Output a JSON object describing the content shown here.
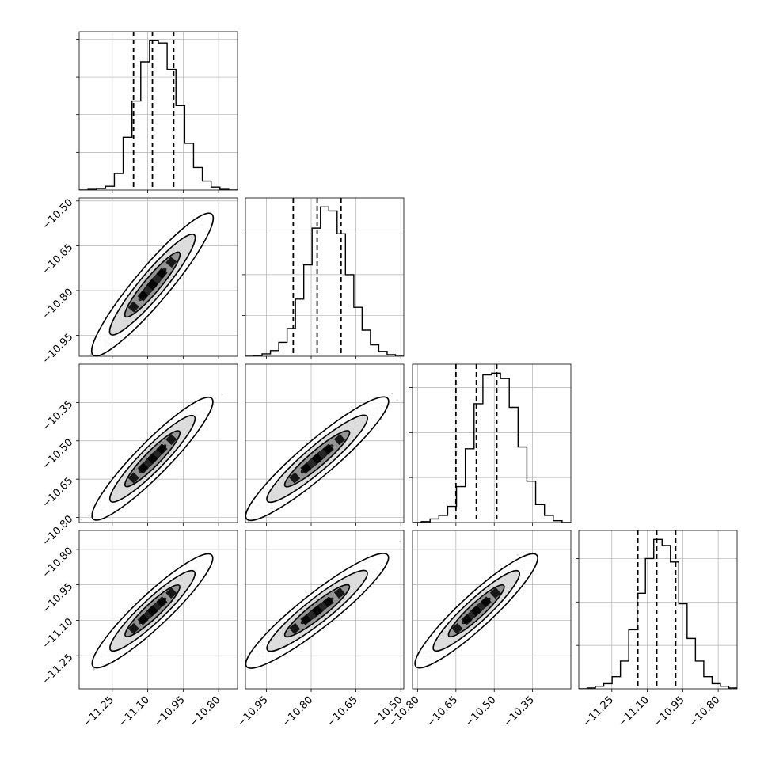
{
  "chart_data": {
    "type": "corner",
    "title": "",
    "parameters": [
      {
        "index": 0,
        "range": [
          -11.39,
          -10.72
        ],
        "ticks": [
          "−11.25",
          "−11.10",
          "−10.95",
          "−10.80"
        ],
        "tick_values": [
          -11.25,
          -11.1,
          -10.95,
          -10.8
        ],
        "quantiles": [
          -11.16,
          -11.08,
          -10.99
        ]
      },
      {
        "index": 1,
        "range": [
          -11.02,
          -10.49
        ],
        "ticks": [
          "−10.95",
          "−10.80",
          "−10.65",
          "−10.50"
        ],
        "tick_values": [
          -10.95,
          -10.8,
          -10.65,
          -10.5
        ],
        "quantiles": [
          -10.86,
          -10.78,
          -10.7
        ]
      },
      {
        "index": 2,
        "range": [
          -10.82,
          -10.2
        ],
        "ticks": [
          "−10.80",
          "−10.65",
          "−10.50",
          "−10.35"
        ],
        "tick_values": [
          -10.8,
          -10.65,
          -10.5,
          -10.35
        ],
        "quantiles": [
          -10.65,
          -10.57,
          -10.49
        ]
      },
      {
        "index": 3,
        "range": [
          -11.39,
          -10.72
        ],
        "ticks": [
          "−11.25",
          "−11.10",
          "−10.95",
          "−10.80"
        ],
        "tick_values": [
          -11.25,
          -11.1,
          -10.95,
          -10.8
        ],
        "quantiles": [
          -11.14,
          -11.06,
          -10.98
        ]
      }
    ],
    "histograms": [
      [
        0,
        1,
        2,
        5,
        22,
        70,
        118,
        170,
        198,
        195,
        160,
        112,
        62,
        30,
        12,
        4,
        1,
        0
      ],
      [
        0,
        1,
        3,
        7,
        17,
        34,
        70,
        112,
        157,
        183,
        178,
        150,
        100,
        60,
        32,
        14,
        6,
        2,
        0
      ],
      [
        0,
        1,
        4,
        8,
        18,
        40,
        82,
        132,
        164,
        166,
        160,
        128,
        84,
        46,
        20,
        8,
        2,
        0
      ],
      [
        0,
        1,
        3,
        6,
        14,
        32,
        68,
        110,
        150,
        172,
        165,
        146,
        98,
        58,
        32,
        14,
        6,
        3,
        1
      ]
    ],
    "correlation": 0.975,
    "contour_levels": 4,
    "grid": true,
    "point_color": "#7f7f7f",
    "line_color": "#000000"
  }
}
